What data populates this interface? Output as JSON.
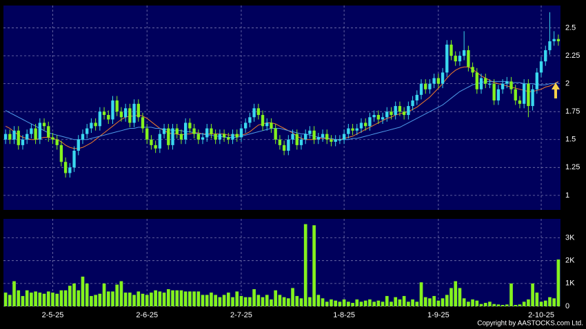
{
  "copyright": "Copyright by AASTOCKS.com Ltd.",
  "chart_data": [
    {
      "type": "candlestick",
      "categories": [
        null,
        null,
        null,
        null,
        null,
        null,
        null,
        null,
        null,
        null,
        null,
        "2-5-25",
        null,
        null,
        null,
        null,
        null,
        null,
        null,
        null,
        null,
        null,
        null,
        null,
        null,
        null,
        null,
        null,
        null,
        null,
        null,
        null,
        null,
        "2-6-25",
        null,
        null,
        null,
        null,
        null,
        null,
        null,
        null,
        null,
        null,
        null,
        null,
        null,
        null,
        null,
        null,
        null,
        null,
        null,
        null,
        null,
        "2-7-25",
        null,
        null,
        null,
        null,
        null,
        null,
        null,
        null,
        null,
        null,
        null,
        null,
        null,
        null,
        null,
        null,
        null,
        null,
        null,
        null,
        null,
        null,
        null,
        "1-8-25",
        null,
        null,
        null,
        null,
        null,
        null,
        null,
        null,
        null,
        null,
        null,
        null,
        null,
        null,
        null,
        null,
        null,
        null,
        null,
        null,
        null,
        "1-9-25",
        null,
        null,
        null,
        null,
        null,
        null,
        null,
        null,
        null,
        null,
        null,
        null,
        null,
        null,
        null,
        null,
        null,
        null,
        null,
        null,
        null,
        null,
        null,
        "2-10-25",
        null,
        null,
        null,
        null
      ],
      "open": [
        1.5,
        1.55,
        1.5,
        1.58,
        1.45,
        1.5,
        1.55,
        1.6,
        1.5,
        1.65,
        1.62,
        1.52,
        1.5,
        1.45,
        1.3,
        1.2,
        1.25,
        1.4,
        1.5,
        1.55,
        1.6,
        1.65,
        1.62,
        1.75,
        1.72,
        1.68,
        1.85,
        1.75,
        1.7,
        1.78,
        1.65,
        1.82,
        1.7,
        1.6,
        1.5,
        1.45,
        1.42,
        1.55,
        1.6,
        1.45,
        1.6,
        1.55,
        1.5,
        1.65,
        1.6,
        1.55,
        1.5,
        1.52,
        1.6,
        1.55,
        1.5,
        1.55,
        1.52,
        1.5,
        1.55,
        1.52,
        1.6,
        1.65,
        1.7,
        1.78,
        1.72,
        1.62,
        1.65,
        1.6,
        1.5,
        1.45,
        1.4,
        1.5,
        1.55,
        1.45,
        1.5,
        1.55,
        1.58,
        1.5,
        1.52,
        1.55,
        1.5,
        1.48,
        1.5,
        1.5,
        1.55,
        1.6,
        1.58,
        1.6,
        1.65,
        1.62,
        1.7,
        1.72,
        1.68,
        1.7,
        1.75,
        1.72,
        1.8,
        1.75,
        1.72,
        1.8,
        1.85,
        1.9,
        2.0,
        1.95,
        2.0,
        2.05,
        2.0,
        2.1,
        2.35,
        2.25,
        2.2,
        2.25,
        2.3,
        2.15,
        2.1,
        1.95,
        2.05,
        2.0,
        2.0,
        1.85,
        1.95,
        2.0,
        2.02,
        1.95,
        1.85,
        1.82,
        2.0,
        1.8,
        1.95,
        2.1,
        2.2,
        2.3,
        2.38,
        2.4
      ],
      "high": [
        1.59,
        1.59,
        1.62,
        1.62,
        1.54,
        1.59,
        1.64,
        1.64,
        1.69,
        1.69,
        1.66,
        1.56,
        1.54,
        1.49,
        1.34,
        1.29,
        1.44,
        1.54,
        1.59,
        1.64,
        1.69,
        1.69,
        1.79,
        1.79,
        1.76,
        1.89,
        1.89,
        1.79,
        1.82,
        1.82,
        1.86,
        1.86,
        1.74,
        1.64,
        1.54,
        1.49,
        1.59,
        1.64,
        1.64,
        1.64,
        1.64,
        1.59,
        1.69,
        1.69,
        1.64,
        1.59,
        1.56,
        1.64,
        1.64,
        1.59,
        1.59,
        1.59,
        1.56,
        1.59,
        1.59,
        1.64,
        1.69,
        1.74,
        1.82,
        1.82,
        1.76,
        1.69,
        1.69,
        1.64,
        1.54,
        1.49,
        1.54,
        1.59,
        1.59,
        1.54,
        1.59,
        1.62,
        1.62,
        1.56,
        1.59,
        1.59,
        1.54,
        1.54,
        1.54,
        1.59,
        1.64,
        1.64,
        1.64,
        1.69,
        1.69,
        1.74,
        1.76,
        1.76,
        1.74,
        1.79,
        1.79,
        1.84,
        1.84,
        1.79,
        1.84,
        1.89,
        1.94,
        2.04,
        2.04,
        2.04,
        2.09,
        2.09,
        2.14,
        2.39,
        2.39,
        2.29,
        2.29,
        2.47,
        2.34,
        2.19,
        2.14,
        2.09,
        2.09,
        2.04,
        2.04,
        1.99,
        2.04,
        2.06,
        2.06,
        1.99,
        1.89,
        2.04,
        2.04,
        1.99,
        2.14,
        2.24,
        2.34,
        2.64,
        2.47,
        2.44
      ],
      "low": [
        1.46,
        1.46,
        1.46,
        1.41,
        1.41,
        1.46,
        1.51,
        1.46,
        1.46,
        1.58,
        1.48,
        1.46,
        1.41,
        1.26,
        1.16,
        1.16,
        1.21,
        1.36,
        1.46,
        1.51,
        1.56,
        1.58,
        1.58,
        1.68,
        1.64,
        1.64,
        1.71,
        1.66,
        1.66,
        1.61,
        1.61,
        1.66,
        1.56,
        1.46,
        1.41,
        1.38,
        1.38,
        1.51,
        1.41,
        1.41,
        1.51,
        1.46,
        1.46,
        1.56,
        1.51,
        1.46,
        1.46,
        1.48,
        1.51,
        1.46,
        1.46,
        1.48,
        1.46,
        1.46,
        1.48,
        1.48,
        1.56,
        1.61,
        1.66,
        1.68,
        1.58,
        1.58,
        1.56,
        1.46,
        1.41,
        1.36,
        1.36,
        1.46,
        1.41,
        1.41,
        1.46,
        1.51,
        1.46,
        1.46,
        1.48,
        1.46,
        1.44,
        1.44,
        1.46,
        1.46,
        1.51,
        1.54,
        1.54,
        1.56,
        1.58,
        1.58,
        1.66,
        1.64,
        1.64,
        1.66,
        1.68,
        1.68,
        1.71,
        1.68,
        1.68,
        1.76,
        1.81,
        1.86,
        1.91,
        1.91,
        1.96,
        1.96,
        1.96,
        2.06,
        2.21,
        2.16,
        2.16,
        2.21,
        2.11,
        2.06,
        1.91,
        1.91,
        1.96,
        1.96,
        1.81,
        1.81,
        1.91,
        1.96,
        1.91,
        1.81,
        1.78,
        1.78,
        1.7,
        1.76,
        1.91,
        2.06,
        2.16,
        2.26,
        2.34,
        2.34
      ],
      "close": [
        1.55,
        1.5,
        1.58,
        1.45,
        1.5,
        1.55,
        1.6,
        1.5,
        1.65,
        1.62,
        1.52,
        1.5,
        1.45,
        1.3,
        1.2,
        1.25,
        1.4,
        1.5,
        1.55,
        1.6,
        1.65,
        1.62,
        1.75,
        1.72,
        1.68,
        1.85,
        1.75,
        1.7,
        1.78,
        1.65,
        1.82,
        1.7,
        1.6,
        1.5,
        1.45,
        1.42,
        1.55,
        1.6,
        1.45,
        1.6,
        1.55,
        1.5,
        1.65,
        1.6,
        1.55,
        1.5,
        1.52,
        1.6,
        1.55,
        1.5,
        1.55,
        1.52,
        1.5,
        1.55,
        1.52,
        1.6,
        1.65,
        1.7,
        1.78,
        1.72,
        1.62,
        1.65,
        1.6,
        1.5,
        1.45,
        1.4,
        1.5,
        1.55,
        1.45,
        1.5,
        1.55,
        1.58,
        1.5,
        1.52,
        1.55,
        1.5,
        1.48,
        1.5,
        1.5,
        1.55,
        1.6,
        1.58,
        1.6,
        1.65,
        1.62,
        1.7,
        1.72,
        1.68,
        1.7,
        1.75,
        1.72,
        1.8,
        1.75,
        1.72,
        1.8,
        1.85,
        1.9,
        2.0,
        1.95,
        2.0,
        2.05,
        2.0,
        2.1,
        2.35,
        2.25,
        2.2,
        2.25,
        2.3,
        2.15,
        2.1,
        1.95,
        2.05,
        2.0,
        2.0,
        1.85,
        1.95,
        2.0,
        2.02,
        1.95,
        1.85,
        1.82,
        2.0,
        1.8,
        1.95,
        2.1,
        2.2,
        2.3,
        2.38,
        2.4,
        2.38
      ],
      "up_color": "#3ad8ee",
      "down_color": "#84f21e",
      "series": [
        {
          "color": "#f07c2a",
          "values": [
            1.62,
            1.6,
            1.57,
            1.54,
            1.52,
            1.51,
            1.5,
            1.5,
            1.51,
            1.52,
            1.52,
            1.51,
            1.5,
            1.48,
            1.45,
            1.43,
            1.42,
            1.42,
            1.43,
            1.45,
            1.47,
            1.5,
            1.53,
            1.56,
            1.59,
            1.62,
            1.65,
            1.68,
            1.7,
            1.71,
            1.71,
            1.72,
            1.71,
            1.69,
            1.66,
            1.63,
            1.6,
            1.58,
            1.56,
            1.55,
            1.55,
            1.54,
            1.55,
            1.55,
            1.56,
            1.56,
            1.55,
            1.55,
            1.55,
            1.55,
            1.55,
            1.55,
            1.54,
            1.54,
            1.54,
            1.54,
            1.55,
            1.57,
            1.6,
            1.63,
            1.64,
            1.65,
            1.65,
            1.64,
            1.62,
            1.6,
            1.58,
            1.56,
            1.53,
            1.51,
            1.5,
            1.5,
            1.5,
            1.51,
            1.51,
            1.51,
            1.5,
            1.5,
            1.5,
            1.51,
            1.52,
            1.53,
            1.55,
            1.57,
            1.59,
            1.61,
            1.63,
            1.65,
            1.67,
            1.69,
            1.7,
            1.72,
            1.73,
            1.74,
            1.75,
            1.77,
            1.79,
            1.82,
            1.85,
            1.88,
            1.92,
            1.96,
            2.0,
            2.05,
            2.09,
            2.12,
            2.14,
            2.15,
            2.15,
            2.13,
            2.1,
            2.07,
            2.05,
            2.03,
            2.01,
            2.0,
            1.99,
            1.98,
            1.97,
            1.96,
            1.95,
            1.94,
            1.93,
            1.93,
            1.94,
            1.95,
            1.97,
            1.98,
            2.0,
            2.02
          ]
        },
        {
          "color": "#4f9be8",
          "values": [
            1.76,
            1.74,
            1.72,
            1.7,
            1.68,
            1.66,
            1.64,
            1.62,
            1.6,
            1.58,
            1.56,
            1.55,
            1.54,
            1.53,
            1.52,
            1.51,
            1.5,
            1.5,
            1.5,
            1.5,
            1.51,
            1.52,
            1.53,
            1.54,
            1.55,
            1.56,
            1.57,
            1.58,
            1.59,
            1.6,
            1.6,
            1.61,
            1.61,
            1.61,
            1.61,
            1.6,
            1.6,
            1.59,
            1.59,
            1.58,
            1.58,
            1.58,
            1.57,
            1.57,
            1.56,
            1.55,
            1.55,
            1.54,
            1.54,
            1.53,
            1.53,
            1.52,
            1.52,
            1.52,
            1.52,
            1.53,
            1.54,
            1.55,
            1.56,
            1.57,
            1.58,
            1.59,
            1.6,
            1.6,
            1.6,
            1.59,
            1.58,
            1.57,
            1.56,
            1.55,
            1.55,
            1.54,
            1.53,
            1.52,
            1.52,
            1.51,
            1.51,
            1.5,
            1.5,
            1.5,
            1.5,
            1.51,
            1.51,
            1.52,
            1.53,
            1.54,
            1.55,
            1.56,
            1.57,
            1.58,
            1.59,
            1.6,
            1.61,
            1.63,
            1.65,
            1.67,
            1.69,
            1.71,
            1.73,
            1.75,
            1.77,
            1.79,
            1.81,
            1.84,
            1.87,
            1.9,
            1.93,
            1.95,
            1.97,
            1.99,
            2.0,
            2.01,
            2.02,
            2.02,
            2.02,
            2.02,
            2.02,
            2.02,
            2.01,
            2.01,
            2.01,
            2.0,
            2.0,
            2.0,
            1.99,
            1.99,
            1.99,
            2.0,
            2.0,
            2.01
          ]
        }
      ],
      "ylim": [
        0.87,
        2.7
      ],
      "yticks": [
        1,
        1.25,
        1.5,
        1.75,
        2,
        2.25,
        2.5
      ],
      "grid": true
    },
    {
      "type": "bar",
      "color": "#84f21e",
      "values": [
        600,
        500,
        1100,
        700,
        450,
        700,
        600,
        650,
        600,
        550,
        650,
        600,
        550,
        700,
        700,
        900,
        1000,
        700,
        1300,
        1000,
        450,
        500,
        550,
        1000,
        650,
        650,
        950,
        1100,
        600,
        600,
        500,
        650,
        550,
        500,
        600,
        700,
        650,
        600,
        750,
        700,
        700,
        700,
        650,
        650,
        650,
        650,
        500,
        500,
        600,
        500,
        400,
        500,
        600,
        400,
        650,
        450,
        400,
        400,
        750,
        500,
        400,
        500,
        300,
        700,
        500,
        400,
        350,
        800,
        450,
        350,
        3600,
        400,
        3550,
        500,
        350,
        200,
        300,
        250,
        200,
        300,
        200,
        150,
        300,
        200,
        250,
        300,
        200,
        250,
        200,
        450,
        200,
        400,
        300,
        450,
        200,
        300,
        200,
        1050,
        400,
        350,
        450,
        250,
        350,
        500,
        800,
        1100,
        800,
        350,
        200,
        300,
        250,
        100,
        150,
        200,
        100,
        80,
        60,
        80,
        1000,
        60,
        80,
        200,
        300,
        1000,
        600,
        200,
        250,
        400,
        350,
        2050
      ],
      "ylim": [
        0,
        3830
      ],
      "yticks": [
        0,
        {
          "value": 1000,
          "label": "1K"
        },
        {
          "value": 2000,
          "label": "2K"
        },
        {
          "value": 3000,
          "label": "3K"
        }
      ],
      "grid": true
    }
  ]
}
